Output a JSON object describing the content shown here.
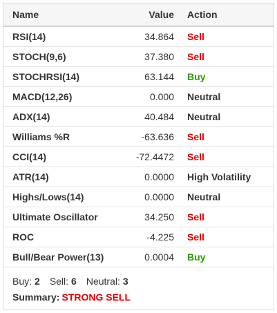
{
  "columns": {
    "name": "Name",
    "value": "Value",
    "action": "Action"
  },
  "rows": [
    {
      "name": "RSI(14)",
      "value": "34.864",
      "action": "Sell",
      "kind": "sell"
    },
    {
      "name": "STOCH(9,6)",
      "value": "37.380",
      "action": "Sell",
      "kind": "sell"
    },
    {
      "name": "STOCHRSI(14)",
      "value": "63.144",
      "action": "Buy",
      "kind": "buy"
    },
    {
      "name": "MACD(12,26)",
      "value": "0.000",
      "action": "Neutral",
      "kind": "neutral"
    },
    {
      "name": "ADX(14)",
      "value": "40.484",
      "action": "Neutral",
      "kind": "neutral"
    },
    {
      "name": "Williams %R",
      "value": "-63.636",
      "action": "Sell",
      "kind": "sell"
    },
    {
      "name": "CCI(14)",
      "value": "-72.4472",
      "action": "Sell",
      "kind": "sell"
    },
    {
      "name": "ATR(14)",
      "value": "0.0000",
      "action": "High Volatility",
      "kind": "neutral"
    },
    {
      "name": "Highs/Lows(14)",
      "value": "0.0000",
      "action": "Neutral",
      "kind": "neutral"
    },
    {
      "name": "Ultimate Oscillator",
      "value": "34.250",
      "action": "Sell",
      "kind": "sell"
    },
    {
      "name": "ROC",
      "value": "-4.225",
      "action": "Sell",
      "kind": "sell"
    },
    {
      "name": "Bull/Bear Power(13)",
      "value": "0.0004",
      "action": "Buy",
      "kind": "buy"
    }
  ],
  "footer": {
    "buy_label": "Buy:",
    "buy_count": "2",
    "sell_label": "Sell:",
    "sell_count": "6",
    "neutral_label": "Neutral:",
    "neutral_count": "3",
    "summary_label": "Summary:",
    "summary_value": "STRONG SELL"
  },
  "colors": {
    "sell": "#e00000",
    "buy": "#2d9a00",
    "neutral": "#333333"
  }
}
